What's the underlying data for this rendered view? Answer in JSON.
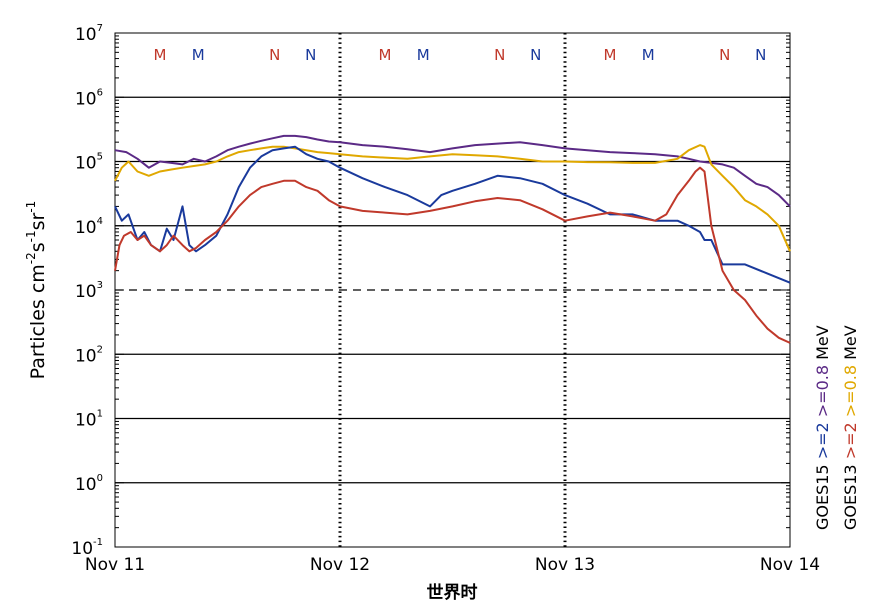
{
  "chart_data": {
    "type": "line",
    "title": "",
    "xlabel": "世界时",
    "ylabel_parts": [
      "Particles cm",
      "-2",
      "s",
      "-1",
      "sr",
      "-1"
    ],
    "y_scale": "log",
    "ylim_exp": [
      -1,
      7
    ],
    "y_ticks": [
      {
        "base": "10",
        "exp": "7"
      },
      {
        "base": "10",
        "exp": "6"
      },
      {
        "base": "10",
        "exp": "5"
      },
      {
        "base": "10",
        "exp": "4"
      },
      {
        "base": "10",
        "exp": "3"
      },
      {
        "base": "10",
        "exp": "2"
      },
      {
        "base": "10",
        "exp": "1"
      },
      {
        "base": "10",
        "exp": "0"
      },
      {
        "base": "10",
        "exp": "-1"
      }
    ],
    "x_ticks": [
      "Nov 11",
      "Nov 12",
      "Nov 13",
      "Nov 14"
    ],
    "xlim_days": [
      0,
      3
    ],
    "horizontal_lines": [
      {
        "y": 1000000,
        "style": "solid"
      },
      {
        "y": 100000,
        "style": "solid"
      },
      {
        "y": 10000,
        "style": "solid"
      },
      {
        "y": 1000,
        "style": "dashed"
      },
      {
        "y": 100,
        "style": "solid"
      },
      {
        "y": 10,
        "style": "solid"
      },
      {
        "y": 1,
        "style": "solid"
      }
    ],
    "mn_markers": [
      {
        "label": "M",
        "day": 0.2,
        "color": "#c0392b"
      },
      {
        "label": "M",
        "day": 0.37,
        "color": "#1a3a9c"
      },
      {
        "label": "N",
        "day": 0.71,
        "color": "#c0392b"
      },
      {
        "label": "N",
        "day": 0.87,
        "color": "#1a3a9c"
      },
      {
        "label": "M",
        "day": 1.2,
        "color": "#c0392b"
      },
      {
        "label": "M",
        "day": 1.37,
        "color": "#1a3a9c"
      },
      {
        "label": "N",
        "day": 1.71,
        "color": "#c0392b"
      },
      {
        "label": "N",
        "day": 1.87,
        "color": "#1a3a9c"
      },
      {
        "label": "M",
        "day": 2.2,
        "color": "#c0392b"
      },
      {
        "label": "M",
        "day": 2.37,
        "color": "#1a3a9c"
      },
      {
        "label": "N",
        "day": 2.71,
        "color": "#c0392b"
      },
      {
        "label": "N",
        "day": 2.87,
        "color": "#1a3a9c"
      }
    ],
    "legend_columns": [
      {
        "satellite": "GOES15",
        "items": [
          {
            "text": ">=2",
            "color": "#1a3a9c"
          },
          {
            "text": ">=0.8",
            "color": "#5b2a86"
          },
          {
            "text": "MeV",
            "color": "#000000"
          }
        ]
      },
      {
        "satellite": "GOES13",
        "items": [
          {
            "text": ">=2",
            "color": "#c0392b"
          },
          {
            "text": ">=0.8",
            "color": "#e0a800"
          },
          {
            "text": "MeV",
            "color": "#000000"
          }
        ]
      }
    ],
    "series": [
      {
        "name": "GOES15 >=0.8 MeV",
        "color": "#5b2a86",
        "x": [
          0,
          0.05,
          0.1,
          0.15,
          0.2,
          0.25,
          0.3,
          0.35,
          0.4,
          0.45,
          0.5,
          0.55,
          0.6,
          0.65,
          0.7,
          0.75,
          0.8,
          0.85,
          0.9,
          0.95,
          1.0,
          1.1,
          1.2,
          1.3,
          1.4,
          1.5,
          1.6,
          1.7,
          1.8,
          1.9,
          2.0,
          2.1,
          2.2,
          2.3,
          2.4,
          2.5,
          2.55,
          2.6,
          2.65,
          2.7,
          2.75,
          2.8,
          2.85,
          2.9,
          2.95,
          3.0
        ],
        "y": [
          150000,
          140000,
          110000,
          80000,
          100000,
          95000,
          90000,
          110000,
          100000,
          120000,
          150000,
          170000,
          190000,
          210000,
          230000,
          250000,
          250000,
          240000,
          220000,
          205000,
          200000,
          180000,
          170000,
          155000,
          140000,
          160000,
          180000,
          190000,
          200000,
          180000,
          160000,
          150000,
          140000,
          135000,
          130000,
          120000,
          110000,
          100000,
          95000,
          90000,
          80000,
          60000,
          45000,
          40000,
          30000,
          20000
        ]
      },
      {
        "name": "GOES13 >=0.8 MeV",
        "color": "#e0a800",
        "x": [
          0,
          0.03,
          0.06,
          0.1,
          0.15,
          0.2,
          0.25,
          0.3,
          0.35,
          0.4,
          0.45,
          0.5,
          0.55,
          0.6,
          0.65,
          0.7,
          0.75,
          0.8,
          0.85,
          0.9,
          0.95,
          1.0,
          1.1,
          1.2,
          1.3,
          1.4,
          1.5,
          1.6,
          1.7,
          1.8,
          1.9,
          2.0,
          2.1,
          2.2,
          2.3,
          2.4,
          2.5,
          2.55,
          2.6,
          2.62,
          2.65,
          2.7,
          2.75,
          2.8,
          2.85,
          2.9,
          2.95,
          3.0
        ],
        "y": [
          50000,
          80000,
          100000,
          70000,
          60000,
          70000,
          75000,
          80000,
          85000,
          90000,
          100000,
          120000,
          140000,
          150000,
          160000,
          170000,
          170000,
          160000,
          150000,
          140000,
          135000,
          130000,
          120000,
          115000,
          110000,
          120000,
          130000,
          125000,
          120000,
          110000,
          100000,
          100000,
          98000,
          97000,
          95000,
          95000,
          110000,
          150000,
          180000,
          170000,
          90000,
          60000,
          40000,
          25000,
          20000,
          15000,
          10000,
          4000
        ]
      },
      {
        "name": "GOES15 >=2 MeV",
        "color": "#1a3a9c",
        "x": [
          0,
          0.03,
          0.06,
          0.1,
          0.13,
          0.16,
          0.2,
          0.23,
          0.26,
          0.3,
          0.33,
          0.36,
          0.4,
          0.45,
          0.5,
          0.55,
          0.6,
          0.65,
          0.7,
          0.75,
          0.8,
          0.85,
          0.9,
          0.95,
          1.0,
          1.1,
          1.2,
          1.3,
          1.4,
          1.45,
          1.5,
          1.6,
          1.7,
          1.8,
          1.9,
          2.0,
          2.1,
          2.2,
          2.3,
          2.4,
          2.45,
          2.5,
          2.55,
          2.6,
          2.62,
          2.65,
          2.7,
          2.8,
          2.9,
          3.0
        ],
        "y": [
          20000,
          12000,
          15000,
          6000,
          8000,
          5000,
          4000,
          9000,
          6000,
          20000,
          5000,
          4000,
          5000,
          7000,
          15000,
          40000,
          80000,
          120000,
          150000,
          160000,
          170000,
          130000,
          110000,
          100000,
          80000,
          55000,
          40000,
          30000,
          20000,
          30000,
          35000,
          45000,
          60000,
          55000,
          45000,
          30000,
          22000,
          15000,
          15000,
          12000,
          12000,
          12000,
          10000,
          8000,
          6000,
          6000,
          2500,
          2500,
          1800,
          1300
        ]
      },
      {
        "name": "GOES13 >=2 MeV",
        "color": "#c0392b",
        "x": [
          0,
          0.02,
          0.04,
          0.07,
          0.1,
          0.13,
          0.16,
          0.2,
          0.23,
          0.26,
          0.3,
          0.33,
          0.36,
          0.4,
          0.45,
          0.5,
          0.55,
          0.6,
          0.65,
          0.7,
          0.75,
          0.8,
          0.85,
          0.9,
          0.95,
          1.0,
          1.1,
          1.2,
          1.3,
          1.4,
          1.5,
          1.6,
          1.7,
          1.8,
          1.9,
          2.0,
          2.1,
          2.2,
          2.3,
          2.4,
          2.45,
          2.5,
          2.55,
          2.58,
          2.6,
          2.62,
          2.65,
          2.7,
          2.75,
          2.8,
          2.85,
          2.9,
          2.95,
          3.0
        ],
        "y": [
          2000,
          5000,
          7000,
          8000,
          6000,
          7000,
          5000,
          4000,
          5000,
          7000,
          5000,
          4000,
          4500,
          6000,
          8000,
          12000,
          20000,
          30000,
          40000,
          45000,
          50000,
          50000,
          40000,
          35000,
          25000,
          20000,
          17000,
          16000,
          15000,
          17000,
          20000,
          24000,
          27000,
          25000,
          18000,
          12000,
          14000,
          16000,
          14000,
          12000,
          15000,
          30000,
          50000,
          70000,
          80000,
          70000,
          10000,
          2000,
          1000,
          700,
          400,
          250,
          180,
          150
        ]
      }
    ]
  }
}
